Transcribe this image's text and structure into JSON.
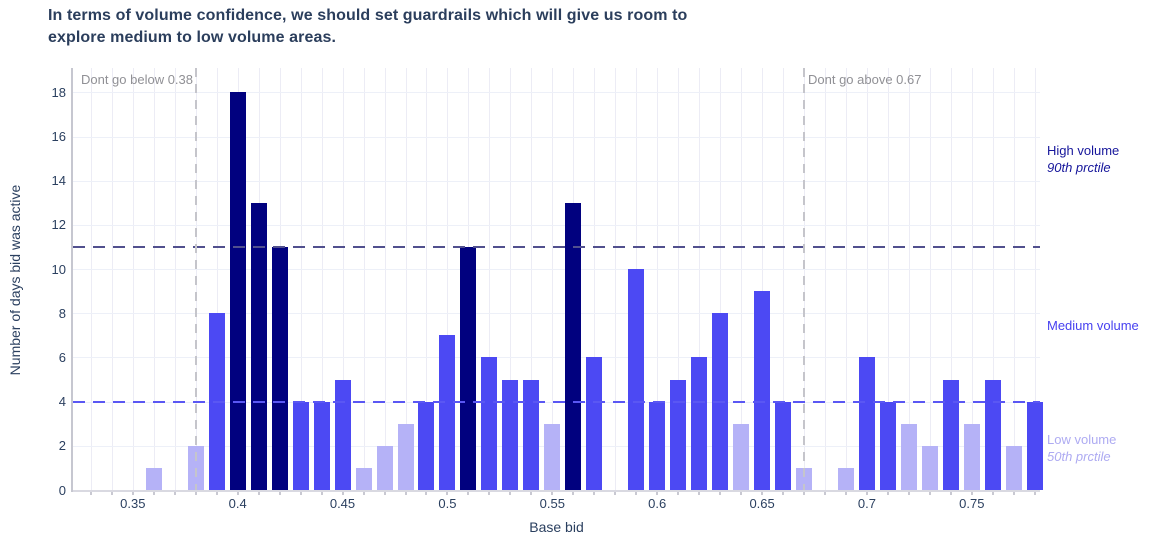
{
  "title": {
    "line1": "In terms of volume confidence, we should set guardrails which will give us room to",
    "line2": "explore medium to low volume areas."
  },
  "axes": {
    "x": {
      "label": "Base bid",
      "ticks": [
        0.35,
        0.4,
        0.45,
        0.5,
        0.55,
        0.6,
        0.65,
        0.7,
        0.75
      ],
      "tick_labels": [
        "0.35",
        "0.4",
        "0.45",
        "0.5",
        "0.55",
        "0.6",
        "0.65",
        "0.7",
        "0.75"
      ]
    },
    "y": {
      "label": "Number of days bid was active",
      "ticks": [
        0,
        2,
        4,
        6,
        8,
        10,
        12,
        14,
        16,
        18
      ],
      "tick_labels": [
        "0",
        "2",
        "4",
        "6",
        "8",
        "10",
        "12",
        "14",
        "16",
        "18"
      ]
    }
  },
  "annotations": {
    "lower_guardrail": {
      "text": "Dont go below 0.38",
      "x": 0.38
    },
    "upper_guardrail": {
      "text": "Dont go above 0.67",
      "x": 0.67
    }
  },
  "reference_lines": {
    "high": {
      "y": 11,
      "color": "#51508e"
    },
    "low": {
      "y": 4,
      "color": "#5a57f3"
    }
  },
  "zone_labels": {
    "high": {
      "line1": "High volume",
      "line2": "90th prctile",
      "color": "#16169b"
    },
    "medium": {
      "line1": "Medium volume",
      "color": "#4741f0"
    },
    "low": {
      "line1": "Low volume",
      "line2": "50th prctile",
      "color": "#aeabf2"
    }
  },
  "colors": {
    "high": "#01017f",
    "medium": "#4c49f3",
    "low": "#b5b2f7"
  },
  "chart_data": {
    "type": "bar",
    "title": "In terms of volume confidence, we should set guardrails which will give us room to explore medium to low volume areas.",
    "xlabel": "Base bid",
    "ylabel": "Number of days bid was active",
    "xlim": [
      0.3215,
      0.7825
    ],
    "ylim": [
      0,
      19.1
    ],
    "x_minor_ticks": {
      "start": 0.33,
      "end": 0.78,
      "step": 0.01
    },
    "grid": true,
    "x": [
      0.36,
      0.38,
      0.39,
      0.4,
      0.41,
      0.42,
      0.43,
      0.44,
      0.45,
      0.46,
      0.47,
      0.48,
      0.49,
      0.5,
      0.51,
      0.52,
      0.53,
      0.54,
      0.55,
      0.56,
      0.57,
      0.59,
      0.6,
      0.61,
      0.62,
      0.63,
      0.64,
      0.65,
      0.66,
      0.67,
      0.69,
      0.7,
      0.71,
      0.72,
      0.73,
      0.74,
      0.75,
      0.76,
      0.77,
      0.78
    ],
    "y": [
      1,
      2,
      8,
      18,
      13,
      11,
      4,
      4,
      5,
      1,
      2,
      3,
      4,
      7,
      11,
      6,
      5,
      5,
      3,
      13,
      6,
      10,
      4,
      5,
      6,
      8,
      3,
      9,
      4,
      1,
      1,
      6,
      4,
      3,
      2,
      5,
      3,
      5,
      2,
      4
    ],
    "level": [
      "low",
      "low",
      "medium",
      "high",
      "high",
      "high",
      "medium",
      "medium",
      "medium",
      "low",
      "low",
      "low",
      "medium",
      "medium",
      "high",
      "medium",
      "medium",
      "medium",
      "low",
      "high",
      "medium",
      "medium",
      "medium",
      "medium",
      "medium",
      "medium",
      "low",
      "medium",
      "medium",
      "low",
      "low",
      "medium",
      "medium",
      "low",
      "low",
      "medium",
      "low",
      "medium",
      "low",
      "medium"
    ],
    "series_legend": [
      {
        "name": "High volume (90th prctile)",
        "threshold": "y >= 11"
      },
      {
        "name": "Medium volume",
        "threshold": "4 <= y < 11"
      },
      {
        "name": "Low volume (50th prctile)",
        "threshold": "y < 4"
      }
    ]
  }
}
